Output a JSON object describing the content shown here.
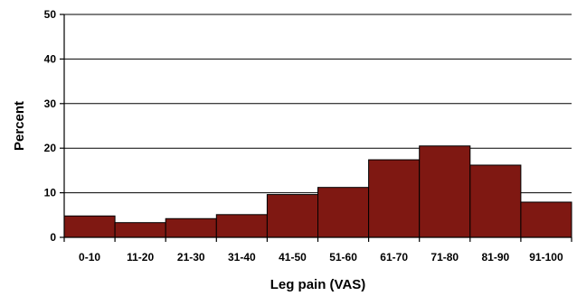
{
  "chart_data": {
    "type": "bar",
    "categories": [
      "0-10",
      "11-20",
      "21-30",
      "31-40",
      "41-50",
      "51-60",
      "61-70",
      "71-80",
      "81-90",
      "91-100"
    ],
    "values": [
      4.8,
      3.3,
      4.2,
      5.1,
      9.6,
      11.2,
      17.4,
      20.5,
      16.2,
      7.9
    ],
    "xlabel": "Leg pain (VAS)",
    "ylabel": "Percent",
    "ylim": [
      0,
      50
    ],
    "yticks": [
      0,
      10,
      20,
      30,
      40,
      50
    ],
    "grid": true,
    "bar_color": "#7F1812"
  }
}
